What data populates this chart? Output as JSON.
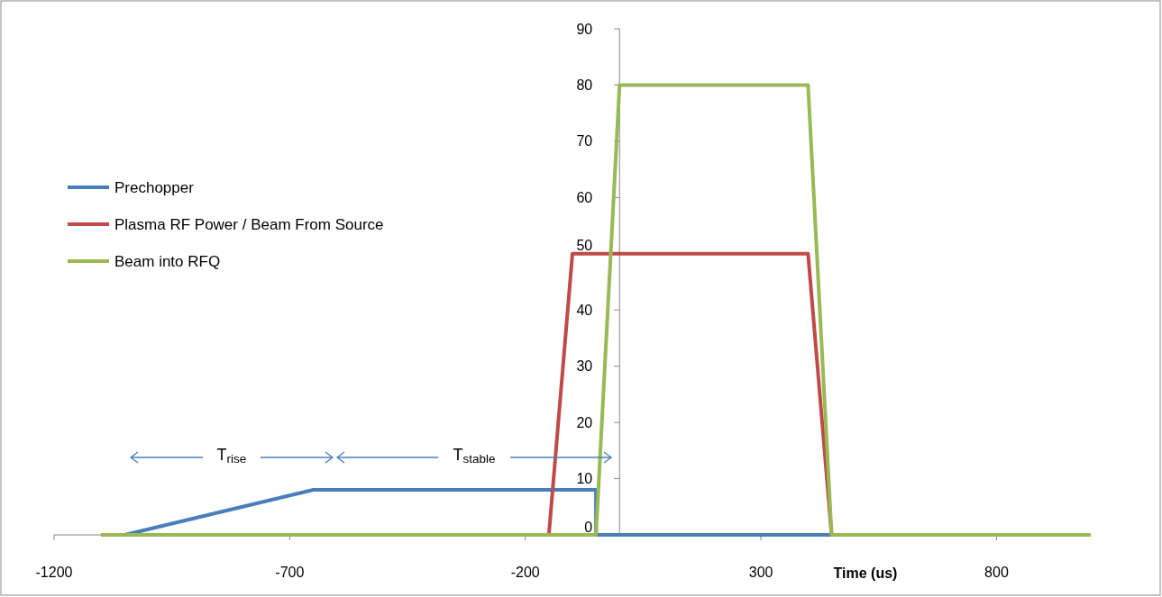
{
  "chart_data": {
    "type": "line",
    "xlabel": "Time (us)",
    "xlim": [
      -1200,
      1000
    ],
    "xticks": [
      -1200,
      -700,
      -200,
      300,
      800
    ],
    "ylim": [
      0,
      90
    ],
    "yticks": [
      0,
      10,
      20,
      30,
      40,
      50,
      60,
      70,
      80,
      90
    ],
    "grid": false,
    "legend": "left",
    "marker": "none",
    "line_style": "solid",
    "series": [
      {
        "name": "Prechopper",
        "color": "#4a7ebb",
        "x": [
          -1100,
          -1050,
          -1000,
          -950,
          -900,
          -850,
          -800,
          -750,
          -700,
          -650,
          -50,
          -50,
          1000
        ],
        "values": [
          0,
          0,
          1,
          2,
          3,
          4,
          5,
          6,
          7,
          8,
          8,
          0,
          0
        ]
      },
      {
        "name": "Plasma RF Power / Beam From Source",
        "color": "#be4b48",
        "x": [
          -1100,
          -150,
          -100,
          400,
          450,
          1000
        ],
        "values": [
          0,
          0,
          50,
          50,
          0,
          0
        ]
      },
      {
        "name": "Beam into RFQ",
        "color": "#98b954",
        "x": [
          -1100,
          -50,
          0,
          400,
          450,
          1000
        ],
        "values": [
          0,
          0,
          80,
          80,
          0,
          0
        ]
      }
    ],
    "annotations": [
      "T$_{rise}$",
      "T$_{stable}$"
    ]
  }
}
